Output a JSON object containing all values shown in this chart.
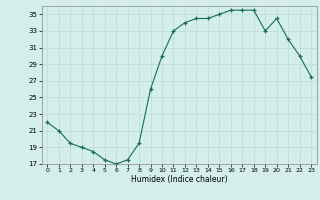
{
  "x": [
    0,
    1,
    2,
    3,
    4,
    5,
    6,
    7,
    8,
    9,
    10,
    11,
    12,
    13,
    14,
    15,
    16,
    17,
    18,
    19,
    20,
    21,
    22,
    23
  ],
  "y": [
    22.0,
    21.0,
    19.5,
    19.0,
    18.5,
    17.5,
    17.0,
    17.5,
    19.5,
    26.0,
    30.0,
    33.0,
    34.0,
    34.5,
    34.5,
    35.0,
    35.5,
    35.5,
    35.5,
    33.0,
    34.5,
    32.0,
    30.0,
    27.5
  ],
  "xlabel": "Humidex (Indice chaleur)",
  "ylim": [
    17,
    36
  ],
  "xlim": [
    -0.5,
    23.5
  ],
  "yticks": [
    17,
    19,
    21,
    23,
    25,
    27,
    29,
    31,
    33,
    35
  ],
  "xticks": [
    0,
    1,
    2,
    3,
    4,
    5,
    6,
    7,
    8,
    9,
    10,
    11,
    12,
    13,
    14,
    15,
    16,
    17,
    18,
    19,
    20,
    21,
    22,
    23
  ],
  "line_color": "#1a6b5a",
  "marker_color": "#1a6b5a",
  "bg_color": "#d4eeea",
  "grid_color": "#b8ddd8",
  "fig_bg": "#d4eeea"
}
